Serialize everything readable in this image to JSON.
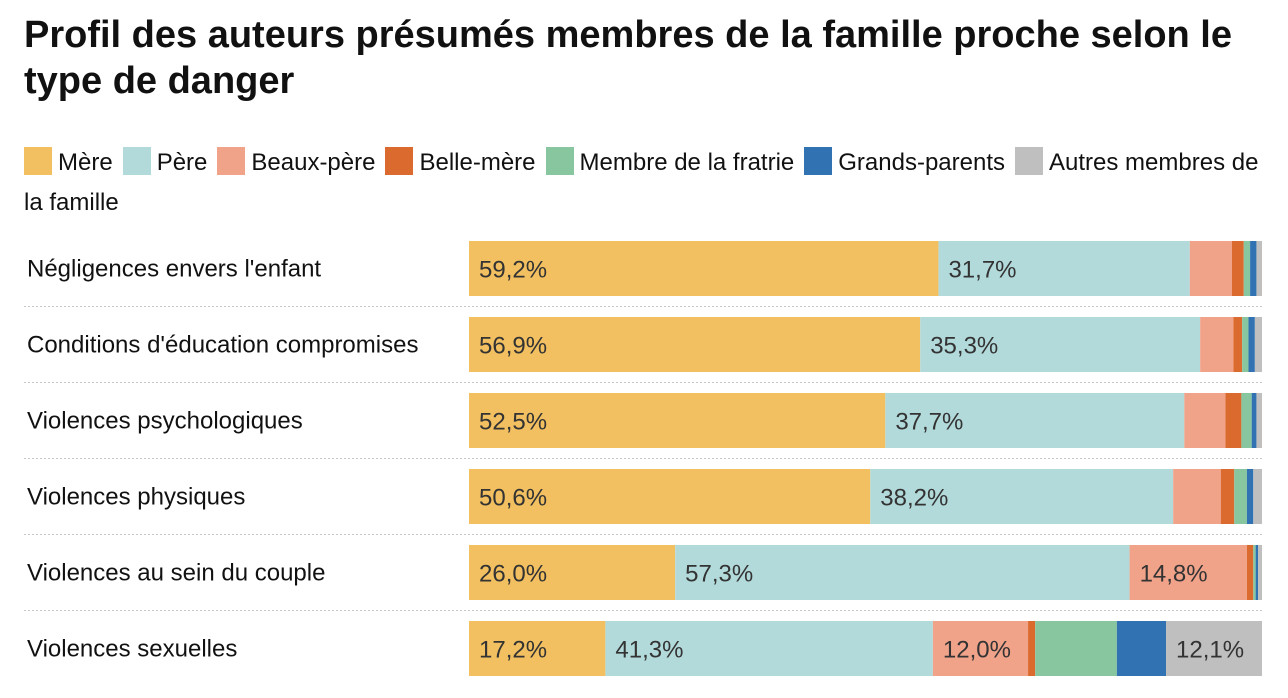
{
  "chart_data": {
    "type": "bar",
    "orientation": "horizontal",
    "stacked": true,
    "title": "Profil des auteurs présumés membres de la famille proche selon le type de danger",
    "xlabel": "",
    "ylabel": "",
    "xlim": [
      0,
      100
    ],
    "legend_position": "top",
    "categories": [
      "Négligences envers l'enfant",
      "Conditions d'éducation compromises",
      "Violences psychologiques",
      "Violences physiques",
      "Violences au sein du couple",
      "Violences sexuelles"
    ],
    "series": [
      {
        "name": "Mère",
        "color": "#f2c060",
        "values": [
          59.2,
          56.9,
          52.5,
          50.6,
          26.0,
          17.2
        ],
        "labels": [
          "59,2%",
          "56,9%",
          "52,5%",
          "50,6%",
          "26,0%",
          "17,2%"
        ]
      },
      {
        "name": "Père",
        "color": "#b3dadb",
        "values": [
          31.7,
          35.3,
          37.7,
          38.2,
          57.3,
          41.3
        ],
        "labels": [
          "31,7%",
          "35,3%",
          "37,7%",
          "38,2%",
          "57,3%",
          "41,3%"
        ]
      },
      {
        "name": "Beaux-père",
        "color": "#f1a38a",
        "values": [
          5.3,
          4.2,
          5.2,
          6.0,
          14.8,
          12.0
        ],
        "labels": [
          "",
          "",
          "",
          "",
          "14,8%",
          "12,0%"
        ]
      },
      {
        "name": "Belle-mère",
        "color": "#db6a2e",
        "values": [
          1.5,
          1.1,
          2.0,
          1.7,
          0.8,
          0.9
        ],
        "labels": [
          "",
          "",
          "",
          "",
          "",
          ""
        ]
      },
      {
        "name": "Membre de la fratrie",
        "color": "#88c6a0",
        "values": [
          0.8,
          0.8,
          1.3,
          1.6,
          0.3,
          10.3
        ],
        "labels": [
          "",
          "",
          "",
          "",
          "",
          ""
        ]
      },
      {
        "name": "Grands-parents",
        "color": "#3173b2",
        "values": [
          0.8,
          0.8,
          0.6,
          0.8,
          0.3,
          6.2
        ],
        "labels": [
          "",
          "",
          "",
          "",
          "",
          ""
        ]
      },
      {
        "name": "Autres membres de la famille",
        "color": "#bfbfbf",
        "values": [
          0.7,
          0.9,
          0.7,
          1.1,
          0.5,
          12.1
        ],
        "labels": [
          "",
          "",
          "",
          "",
          "",
          "12,1%"
        ]
      }
    ]
  }
}
